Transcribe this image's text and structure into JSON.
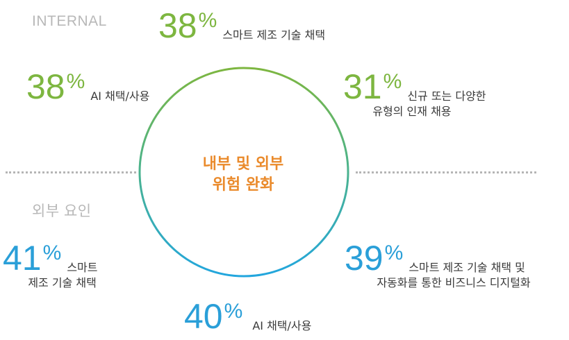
{
  "sections": {
    "internal_label": "INTERNAL",
    "external_label": "외부 요인"
  },
  "center": {
    "line1": "내부 및 외부",
    "line2": "위험 완화"
  },
  "colors": {
    "internal": "#7db640",
    "external": "#2a9fd8",
    "center_text": "#ea8a2b",
    "divider": "#b5b5b5"
  },
  "chart_data": {
    "type": "radial-infographic",
    "groups": [
      {
        "name": "INTERNAL",
        "items": [
          {
            "value": 38,
            "display": "38",
            "unit": "%",
            "label": [
              "스마트 제조 기술 채택"
            ]
          },
          {
            "value": 38,
            "display": "38",
            "unit": "%",
            "label": [
              "AI 채택/사용"
            ]
          },
          {
            "value": 31,
            "display": "31",
            "unit": "%",
            "label": [
              "신규 또는 다양한",
              "유형의 인재 채용"
            ]
          }
        ]
      },
      {
        "name": "외부 요인",
        "items": [
          {
            "value": 41,
            "display": "41",
            "unit": "%",
            "label": [
              "스마트",
              "제조 기술 채택"
            ]
          },
          {
            "value": 40,
            "display": "40",
            "unit": "%",
            "label": [
              "AI 채택/사용"
            ]
          },
          {
            "value": 39,
            "display": "39",
            "unit": "%",
            "label": [
              "스마트 제조 기술 채택 및",
              "자동화를 통한 비즈니스 디지털화"
            ]
          }
        ]
      }
    ]
  }
}
